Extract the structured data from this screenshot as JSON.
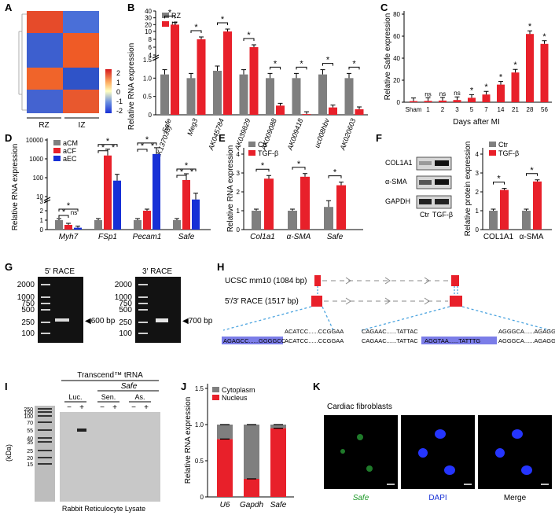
{
  "colors": {
    "red": "#e8202a",
    "grey": "#7f7f7f",
    "blue": "#1730d6",
    "black": "#000000",
    "blueHighlight": "#7b7de8",
    "dashedBlue": "#4aa3df"
  },
  "panels": {
    "A": {
      "label": "A",
      "groups": [
        "RZ",
        "IZ"
      ],
      "scale_ticks": [
        "2",
        "1",
        "0",
        "-1",
        "-2"
      ]
    },
    "B": {
      "label": "B",
      "legend": [
        "RZ",
        "IZ"
      ]
    },
    "C": {
      "label": "C",
      "xlabel": "Days after MI"
    },
    "D": {
      "label": "D",
      "legend": [
        "aCM",
        "aCF",
        "aEC"
      ]
    },
    "E": {
      "label": "E",
      "legend": [
        "Ctr",
        "TGF-β"
      ]
    },
    "F": {
      "label": "F",
      "legend": [
        "Ctr",
        "TGF-β"
      ],
      "blot_labels": [
        "COL1A1",
        "α-SMA",
        "GAPDH"
      ],
      "lanes": [
        "Ctr",
        "TGF-β"
      ]
    },
    "G": {
      "label": "G",
      "gel1_title": "5′ RACE",
      "gel2_title": "3′ RACE",
      "ladder": [
        "2000",
        "1000",
        "750",
        "500",
        "250",
        "100"
      ],
      "band1": "◀600 bp",
      "band2": "◀700 bp"
    },
    "H": {
      "label": "H",
      "row1": "UCSC mm10 (1084 bp)",
      "row2": "5′/3′ RACE (1517 bp)",
      "seq_left_top": "ACATCC......CCGGAA",
      "seq_left_bot_hl": "AGAGCC......GGGGCC",
      "seq_left_bot": "ACATCC......CCGGAA",
      "seq_right_top_a": "CAGAAC......TATTAC",
      "seq_right_top_b": "AGGGCA......AGAGGG",
      "seq_right_bot_a": "CAGAAC......TATTAC",
      "seq_right_bot_hl": "AGGTAA......TATTTG",
      "seq_right_bot_b": "AGGGCA......AGAGGG"
    },
    "I": {
      "label": "I",
      "header": "Transcend™ tRNA",
      "safe": "Safe",
      "groups": [
        "Luc.",
        "Sen.",
        "As."
      ],
      "signs": [
        "−",
        "+",
        "−",
        "+",
        "−",
        "+"
      ],
      "marker": [
        "250",
        "150",
        "100",
        "70",
        "55",
        "40",
        "35",
        "25",
        "20",
        "15"
      ],
      "ylabel": "(kDa)",
      "footer": "Rabbit Reticulocyte Lysate"
    },
    "J": {
      "label": "J",
      "legend": [
        "Cytoplasm",
        "Nucleus"
      ]
    },
    "K": {
      "label": "K",
      "title": "Cardiac fibroblasts",
      "captions": [
        "Safe",
        "DAPI",
        "Merge"
      ]
    }
  },
  "chart_data": [
    {
      "type": "bar",
      "panel": "B",
      "ylabel": "Relative RNA expression",
      "categories": [
        "Safe\n(AK137033)",
        "Meg3",
        "AK045784",
        "AK039829",
        "AK009088",
        "AK009418",
        "uc008hbv",
        "AK020603"
      ],
      "series": [
        {
          "name": "RZ",
          "values": [
            1.1,
            1.0,
            1.2,
            1.1,
            1.0,
            1.0,
            1.1,
            1.0
          ]
        },
        {
          "name": "IZ",
          "values": [
            20,
            8,
            10,
            6,
            0.25,
            0.02,
            0.2,
            0.15
          ]
        }
      ],
      "yticks": [
        "0",
        "0.5",
        "1.0",
        "1.5",
        "4",
        "6",
        "8",
        "10",
        "20",
        "30",
        "40"
      ],
      "sig": "*"
    },
    {
      "type": "bar",
      "panel": "C",
      "ylabel": "Relative Safe expression",
      "xlabel": "Days after MI",
      "categories": [
        "Sham",
        "1",
        "2",
        "3",
        "5",
        "7",
        "14",
        "21",
        "28",
        "56"
      ],
      "values": [
        1,
        1.2,
        1.5,
        2,
        4,
        7,
        16,
        27,
        62,
        53
      ],
      "ylim": [
        0,
        80
      ],
      "yticks": [
        "0",
        "20",
        "40",
        "60",
        "80"
      ],
      "sig": [
        "",
        "ns",
        "ns",
        "ns",
        "*",
        "*",
        "*",
        "*",
        "*",
        "*"
      ]
    },
    {
      "type": "bar",
      "panel": "D",
      "ylabel": "Relative RNA expression",
      "categories": [
        "Myh7",
        "FSp1",
        "Pecam1",
        "Safe"
      ],
      "series": [
        {
          "name": "aCM",
          "values": [
            1,
            1,
            1,
            1
          ]
        },
        {
          "name": "aCF",
          "values": [
            0.5,
            1500,
            2,
            75
          ]
        },
        {
          "name": "aEC",
          "values": [
            0.2,
            70,
            1800,
            7
          ]
        }
      ],
      "yticks": [
        "0",
        "1",
        "2",
        "3",
        "10",
        "100",
        "1000",
        "10000"
      ],
      "sig_ns": "ns",
      "sig": "*"
    },
    {
      "type": "bar",
      "panel": "E",
      "ylabel": "Relative RNA expression",
      "categories": [
        "Col1a1",
        "α-SMA",
        "Safe"
      ],
      "series": [
        {
          "name": "Ctr",
          "values": [
            1,
            1,
            1.2
          ]
        },
        {
          "name": "TGF-β",
          "values": [
            2.7,
            2.8,
            2.35
          ]
        }
      ],
      "ylim": [
        0,
        4
      ],
      "yticks": [
        "0",
        "1",
        "2",
        "3",
        "4"
      ],
      "sig": "*"
    },
    {
      "type": "bar",
      "panel": "F",
      "ylabel": "Relative protein expression",
      "categories": [
        "COL1A1",
        "α-SMA"
      ],
      "series": [
        {
          "name": "Ctr",
          "values": [
            1,
            1
          ]
        },
        {
          "name": "TGF-β",
          "values": [
            2.1,
            2.55
          ]
        }
      ],
      "ylim": [
        0,
        4
      ],
      "yticks": [
        "0",
        "1",
        "2",
        "3",
        "4"
      ],
      "sig": "*"
    },
    {
      "type": "bar",
      "panel": "J",
      "ylabel": "Relative RNA expression",
      "stacked": true,
      "categories": [
        "U6",
        "Gapdh",
        "Safe"
      ],
      "series": [
        {
          "name": "Nucleus",
          "values": [
            0.8,
            0.25,
            0.95
          ]
        },
        {
          "name": "Cytoplasm",
          "values": [
            0.2,
            0.75,
            0.05
          ]
        }
      ],
      "ylim": [
        0,
        1.5
      ],
      "yticks": [
        "0",
        "0.5",
        "1.0",
        "1.5"
      ]
    }
  ]
}
